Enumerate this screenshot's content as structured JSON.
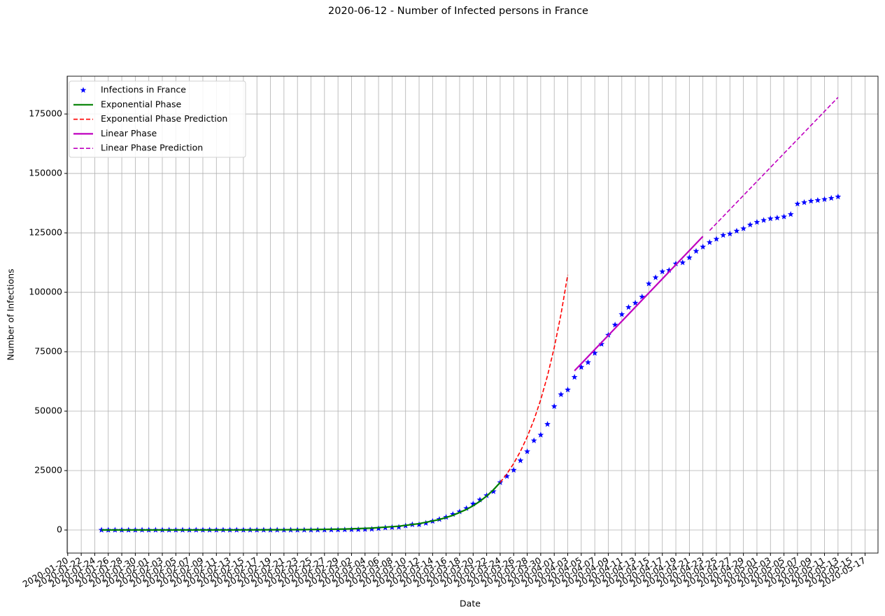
{
  "chart_data": {
    "type": "line",
    "title": "2020-06-12 - Number of Infected persons in France",
    "x_label": "Date",
    "y_label": "Number of Infections",
    "grid": true,
    "legend": "upper left",
    "xlim": [
      "2020-01-19T22:00:00Z",
      "2020-05-18T22:00:00Z"
    ],
    "xticks": [
      "2020-01-20",
      "2020-01-22",
      "2020-01-24",
      "2020-01-26",
      "2020-01-28",
      "2020-01-30",
      "2020-02-01",
      "2020-02-03",
      "2020-02-05",
      "2020-02-07",
      "2020-02-09",
      "2020-02-11",
      "2020-02-13",
      "2020-02-15",
      "2020-02-17",
      "2020-02-19",
      "2020-02-21",
      "2020-02-23",
      "2020-02-25",
      "2020-02-27",
      "2020-02-29",
      "2020-03-02",
      "2020-03-04",
      "2020-03-06",
      "2020-03-08",
      "2020-03-10",
      "2020-03-12",
      "2020-03-14",
      "2020-03-16",
      "2020-03-18",
      "2020-03-20",
      "2020-03-22",
      "2020-03-24",
      "2020-03-26",
      "2020-03-28",
      "2020-03-30",
      "2020-04-01",
      "2020-04-03",
      "2020-04-05",
      "2020-04-07",
      "2020-04-09",
      "2020-04-11",
      "2020-04-13",
      "2020-04-15",
      "2020-04-17",
      "2020-04-19",
      "2020-04-21",
      "2020-04-23",
      "2020-04-25",
      "2020-04-27",
      "2020-04-29",
      "2020-05-01",
      "2020-05-03",
      "2020-05-05",
      "2020-05-07",
      "2020-05-09",
      "2020-05-11",
      "2020-05-13",
      "2020-05-15",
      "2020-05-17"
    ],
    "ylim": [
      -9700,
      190900
    ],
    "yticks": [
      0,
      25000,
      50000,
      75000,
      100000,
      125000,
      150000,
      175000
    ],
    "series": [
      {
        "name": "Infections in France",
        "color": "#0000ff",
        "style": "star",
        "x": [
          "2020-01-25",
          "2020-01-26",
          "2020-01-27",
          "2020-01-28",
          "2020-01-29",
          "2020-01-30",
          "2020-01-31",
          "2020-02-01",
          "2020-02-02",
          "2020-02-03",
          "2020-02-04",
          "2020-02-05",
          "2020-02-06",
          "2020-02-07",
          "2020-02-08",
          "2020-02-09",
          "2020-02-10",
          "2020-02-11",
          "2020-02-12",
          "2020-02-13",
          "2020-02-14",
          "2020-02-15",
          "2020-02-16",
          "2020-02-17",
          "2020-02-18",
          "2020-02-19",
          "2020-02-20",
          "2020-02-21",
          "2020-02-22",
          "2020-02-23",
          "2020-02-24",
          "2020-02-25",
          "2020-02-26",
          "2020-02-27",
          "2020-02-28",
          "2020-02-29",
          "2020-03-01",
          "2020-03-02",
          "2020-03-03",
          "2020-03-04",
          "2020-03-05",
          "2020-03-06",
          "2020-03-07",
          "2020-03-08",
          "2020-03-09",
          "2020-03-10",
          "2020-03-11",
          "2020-03-12",
          "2020-03-13",
          "2020-03-14",
          "2020-03-15",
          "2020-03-16",
          "2020-03-17",
          "2020-03-18",
          "2020-03-19",
          "2020-03-20",
          "2020-03-21",
          "2020-03-22",
          "2020-03-23",
          "2020-03-24",
          "2020-03-25",
          "2020-03-26",
          "2020-03-27",
          "2020-03-28",
          "2020-03-29",
          "2020-03-30",
          "2020-03-31",
          "2020-04-01",
          "2020-04-02",
          "2020-04-03",
          "2020-04-04",
          "2020-04-05",
          "2020-04-06",
          "2020-04-07",
          "2020-04-08",
          "2020-04-09",
          "2020-04-10",
          "2020-04-11",
          "2020-04-12",
          "2020-04-13",
          "2020-04-14",
          "2020-04-15",
          "2020-04-16",
          "2020-04-17",
          "2020-04-18",
          "2020-04-19",
          "2020-04-20",
          "2020-04-21",
          "2020-04-22",
          "2020-04-23",
          "2020-04-24",
          "2020-04-25",
          "2020-04-26",
          "2020-04-27",
          "2020-04-28",
          "2020-04-29",
          "2020-04-30",
          "2020-05-01",
          "2020-05-02",
          "2020-05-03",
          "2020-05-04",
          "2020-05-05",
          "2020-05-06",
          "2020-05-07",
          "2020-05-08",
          "2020-05-09",
          "2020-05-10",
          "2020-05-11",
          "2020-05-12",
          "2020-05-13"
        ],
        "values": [
          3,
          3,
          3,
          4,
          5,
          5,
          6,
          6,
          6,
          6,
          6,
          6,
          6,
          6,
          11,
          11,
          11,
          11,
          11,
          11,
          11,
          12,
          12,
          12,
          12,
          12,
          12,
          12,
          12,
          12,
          12,
          14,
          18,
          38,
          57,
          100,
          130,
          191,
          204,
          288,
          380,
          656,
          959,
          1136,
          1219,
          1794,
          2293,
          2293,
          2900,
          3700,
          4500,
          5400,
          6600,
          7700,
          9100,
          11000,
          12700,
          14500,
          16200,
          20000,
          22600,
          25200,
          29200,
          33000,
          37600,
          40000,
          44500,
          52000,
          57000,
          59000,
          64300,
          68500,
          70500,
          74400,
          78200,
          82000,
          86300,
          90700,
          93700,
          95500,
          98100,
          103600,
          106200,
          108700,
          109300,
          112000,
          112500,
          114600,
          117300,
          119100,
          121000,
          122400,
          124000,
          124600,
          125800,
          126800,
          128400,
          129500,
          130300,
          131000,
          131300,
          131800,
          132800,
          137200,
          137800,
          138400,
          138700,
          139100,
          139600,
          140200
        ]
      },
      {
        "name": "Exponential Phase",
        "color": "#008000",
        "style": "solid",
        "x": [
          "2020-01-25",
          "2020-02-04",
          "2020-02-14",
          "2020-02-24",
          "2020-03-01",
          "2020-03-05",
          "2020-03-09",
          "2020-03-12",
          "2020-03-15",
          "2020-03-17",
          "2020-03-19",
          "2020-03-20",
          "2020-03-21",
          "2020-03-22",
          "2020-03-23",
          "2020-03-24"
        ],
        "values": [
          1,
          5,
          29,
          153,
          420,
          822,
          1610,
          2664,
          4410,
          6170,
          8634,
          10214,
          12082,
          14292,
          16907,
          20000
        ]
      },
      {
        "name": "Exponential Phase Prediction",
        "color": "#ff0000",
        "style": "dashed",
        "x": [
          "2020-03-24",
          "2020-03-25",
          "2020-03-26",
          "2020-03-27",
          "2020-03-28",
          "2020-03-29",
          "2020-03-30",
          "2020-03-31",
          "2020-04-01",
          "2020-04-02",
          "2020-04-03"
        ],
        "values": [
          20000,
          23660,
          27990,
          33110,
          39170,
          46340,
          54820,
          64850,
          76720,
          90760,
          107370
        ]
      },
      {
        "name": "Linear Phase",
        "color": "#bf00bf",
        "style": "solid",
        "x": [
          "2020-04-04",
          "2020-04-23"
        ],
        "values": [
          67000,
          123500
        ]
      },
      {
        "name": "Linear Phase Prediction",
        "color": "#bf00bf",
        "style": "dashed",
        "x": [
          "2020-04-24",
          "2020-05-13"
        ],
        "values": [
          126000,
          182000
        ]
      }
    ]
  }
}
